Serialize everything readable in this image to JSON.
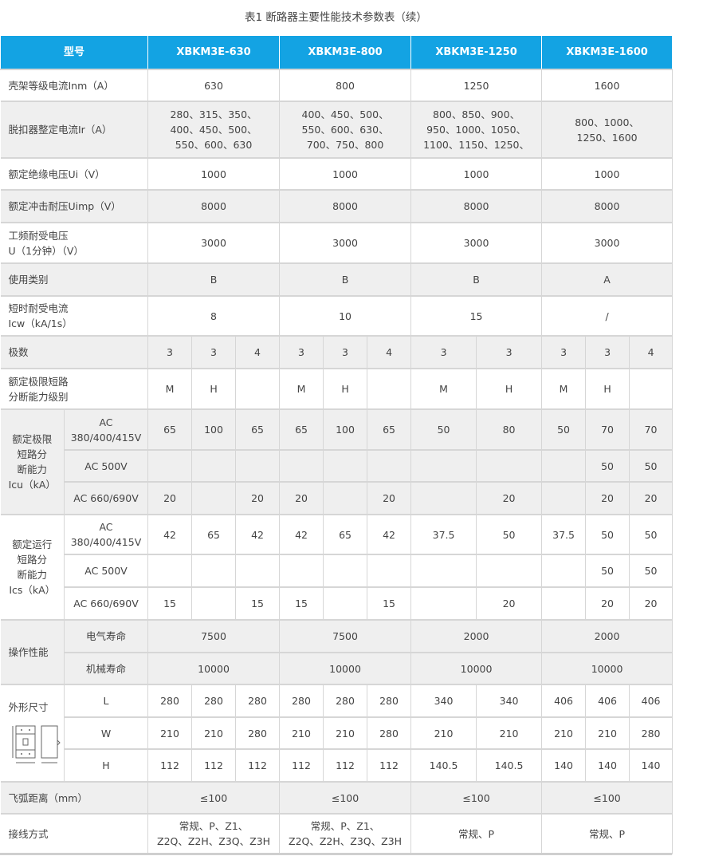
{
  "title": "表1  断路器主要性能技术参数表（续）",
  "colors": {
    "header": "#13a3e3",
    "shaded_row": "#efefef",
    "border": "#d6d6d6"
  },
  "table": {
    "rows": [
      {
        "bg": "hdr",
        "h": 42,
        "cells": [
          {
            "t": "型号",
            "cs": 2,
            "c": "grp"
          },
          {
            "t": "XBKM3E-630",
            "cs": 3
          },
          {
            "t": "XBKM3E-800",
            "cs": 3
          },
          {
            "t": "XBKM3E-1250",
            "cs": 2
          },
          {
            "t": "XBKM3E-1600",
            "cs": 3
          }
        ]
      },
      {
        "bg": "w",
        "h": 40,
        "cells": [
          {
            "t": "壳架等级电流Inm（A）",
            "cs": 2,
            "c": "lab"
          },
          {
            "t": "630",
            "cs": 3
          },
          {
            "t": "800",
            "cs": 3
          },
          {
            "t": "1250",
            "cs": 2
          },
          {
            "t": "1600",
            "cs": 3
          }
        ]
      },
      {
        "bg": "g",
        "h": 71,
        "cells": [
          {
            "t": "脱扣器整定电流Ir（A）",
            "cs": 2,
            "c": "lab"
          },
          {
            "t": "280、315、350、\n400、450、500、\n550、600、630",
            "cs": 3
          },
          {
            "t": "400、450、500、\n550、600、630、\n700、750、800",
            "cs": 3
          },
          {
            "t": "800、850、900、\n950、1000、1050、\n1100、1150、1250、",
            "cs": 2
          },
          {
            "t": "800、1000、\n1250、1600",
            "cs": 3
          }
        ]
      },
      {
        "bg": "w",
        "h": 40,
        "cells": [
          {
            "t": "额定绝缘电压Ui（V）",
            "cs": 2,
            "c": "lab"
          },
          {
            "t": "1000",
            "cs": 3
          },
          {
            "t": "1000",
            "cs": 3
          },
          {
            "t": "1000",
            "cs": 2
          },
          {
            "t": "1000",
            "cs": 3
          }
        ]
      },
      {
        "bg": "g",
        "h": 41,
        "cells": [
          {
            "t": "额定冲击耐压Uimp（V）",
            "cs": 2,
            "c": "lab"
          },
          {
            "t": "8000",
            "cs": 3
          },
          {
            "t": "8000",
            "cs": 3
          },
          {
            "t": "8000",
            "cs": 2
          },
          {
            "t": "8000",
            "cs": 3
          }
        ]
      },
      {
        "bg": "w",
        "h": 51,
        "cells": [
          {
            "t": "工频耐受电压\nU（1分钟）（V）",
            "cs": 2,
            "c": "lab"
          },
          {
            "t": "3000",
            "cs": 3
          },
          {
            "t": "3000",
            "cs": 3
          },
          {
            "t": "3000",
            "cs": 2
          },
          {
            "t": "3000",
            "cs": 3
          }
        ]
      },
      {
        "bg": "g",
        "h": 41,
        "cells": [
          {
            "t": "使用类别",
            "cs": 2,
            "c": "lab"
          },
          {
            "t": "B",
            "cs": 3
          },
          {
            "t": "B",
            "cs": 3
          },
          {
            "t": "B",
            "cs": 2
          },
          {
            "t": "A",
            "cs": 3
          }
        ]
      },
      {
        "bg": "w",
        "h": 50,
        "cells": [
          {
            "t": "短时耐受电流\nIcw（kA/1s）",
            "cs": 2,
            "c": "lab"
          },
          {
            "t": "8",
            "cs": 3
          },
          {
            "t": "10",
            "cs": 3
          },
          {
            "t": "15",
            "cs": 2
          },
          {
            "t": "/",
            "cs": 3
          }
        ]
      },
      {
        "bg": "g",
        "h": 41,
        "cells": [
          {
            "t": "极数",
            "cs": 2,
            "c": "lab"
          },
          {
            "t": "3"
          },
          {
            "t": "3"
          },
          {
            "t": "4"
          },
          {
            "t": "3"
          },
          {
            "t": "3"
          },
          {
            "t": "4"
          },
          {
            "t": "3"
          },
          {
            "t": "3"
          },
          {
            "t": "3"
          },
          {
            "t": "3"
          },
          {
            "t": "4"
          }
        ]
      },
      {
        "bg": "w",
        "h": 51,
        "cells": [
          {
            "t": "额定极限短路\n分断能力级别",
            "cs": 2,
            "c": "lab"
          },
          {
            "t": "M"
          },
          {
            "t": "H"
          },
          {
            "t": ""
          },
          {
            "t": "M"
          },
          {
            "t": "H"
          },
          {
            "t": ""
          },
          {
            "t": "M"
          },
          {
            "t": "H"
          },
          {
            "t": "M"
          },
          {
            "t": "H"
          },
          {
            "t": ""
          }
        ]
      },
      {
        "bg": "g",
        "h": 51,
        "cells": [
          {
            "t": "额定极限\n短路分\n断能力\nIcu（kA）",
            "rs": 3,
            "c": "grp"
          },
          {
            "t": "AC\n380/400/415V"
          },
          {
            "t": "65"
          },
          {
            "t": "100"
          },
          {
            "t": "65"
          },
          {
            "t": "65"
          },
          {
            "t": "100"
          },
          {
            "t": "65"
          },
          {
            "t": "50"
          },
          {
            "t": "80"
          },
          {
            "t": "50"
          },
          {
            "t": "70"
          },
          {
            "t": "70"
          }
        ]
      },
      {
        "bg": "g",
        "h": 40,
        "cells": [
          {
            "t": "AC 500V"
          },
          {
            "t": ""
          },
          {
            "t": ""
          },
          {
            "t": ""
          },
          {
            "t": ""
          },
          {
            "t": ""
          },
          {
            "t": ""
          },
          {
            "t": ""
          },
          {
            "t": ""
          },
          {
            "t": ""
          },
          {
            "t": "50"
          },
          {
            "t": "50"
          }
        ]
      },
      {
        "bg": "g",
        "h": 41,
        "cells": [
          {
            "t": "AC 660/690V"
          },
          {
            "t": "20"
          },
          {
            "t": ""
          },
          {
            "t": "20"
          },
          {
            "t": "20"
          },
          {
            "t": ""
          },
          {
            "t": "20"
          },
          {
            "t": ""
          },
          {
            "t": "20"
          },
          {
            "t": ""
          },
          {
            "t": "20"
          },
          {
            "t": "20"
          }
        ]
      },
      {
        "bg": "w",
        "h": 50,
        "cells": [
          {
            "t": "额定运行\n短路分\n断能力\nIcs（kA）",
            "rs": 3,
            "c": "grp"
          },
          {
            "t": "AC\n380/400/415V"
          },
          {
            "t": "42"
          },
          {
            "t": "65"
          },
          {
            "t": "42"
          },
          {
            "t": "42"
          },
          {
            "t": "65"
          },
          {
            "t": "42"
          },
          {
            "t": "37.5"
          },
          {
            "t": "50"
          },
          {
            "t": "37.5"
          },
          {
            "t": "50"
          },
          {
            "t": "50"
          }
        ]
      },
      {
        "bg": "w",
        "h": 41,
        "cells": [
          {
            "t": "AC 500V"
          },
          {
            "t": ""
          },
          {
            "t": ""
          },
          {
            "t": ""
          },
          {
            "t": ""
          },
          {
            "t": ""
          },
          {
            "t": ""
          },
          {
            "t": ""
          },
          {
            "t": ""
          },
          {
            "t": ""
          },
          {
            "t": "50"
          },
          {
            "t": "50"
          }
        ]
      },
      {
        "bg": "w",
        "h": 41,
        "cells": [
          {
            "t": "AC 660/690V"
          },
          {
            "t": "15"
          },
          {
            "t": ""
          },
          {
            "t": "15"
          },
          {
            "t": "15"
          },
          {
            "t": ""
          },
          {
            "t": "15"
          },
          {
            "t": ""
          },
          {
            "t": "20"
          },
          {
            "t": ""
          },
          {
            "t": "20"
          },
          {
            "t": "20"
          }
        ]
      },
      {
        "bg": "g",
        "h": 41,
        "cells": [
          {
            "t": "操作性能",
            "rs": 2,
            "c": "lab"
          },
          {
            "t": "电气寿命"
          },
          {
            "t": "7500",
            "cs": 3
          },
          {
            "t": "7500",
            "cs": 3
          },
          {
            "t": "2000",
            "cs": 2
          },
          {
            "t": "2000",
            "cs": 3
          }
        ]
      },
      {
        "bg": "g",
        "h": 40,
        "cells": [
          {
            "t": "机械寿命"
          },
          {
            "t": "10000",
            "cs": 3
          },
          {
            "t": "10000",
            "cs": 3
          },
          {
            "t": "10000",
            "cs": 2
          },
          {
            "t": "10000",
            "cs": 3
          }
        ]
      },
      {
        "bg": "w",
        "h": 41,
        "cells": [
          {
            "t": "外形尺寸",
            "rs": 3,
            "c": "lab dim"
          },
          {
            "t": "L"
          },
          {
            "t": "280"
          },
          {
            "t": "280"
          },
          {
            "t": "280"
          },
          {
            "t": "280"
          },
          {
            "t": "280"
          },
          {
            "t": "280"
          },
          {
            "t": "340"
          },
          {
            "t": "340"
          },
          {
            "t": "406"
          },
          {
            "t": "406"
          },
          {
            "t": "406"
          }
        ]
      },
      {
        "bg": "w",
        "h": 40,
        "cells": [
          {
            "t": "W"
          },
          {
            "t": "210"
          },
          {
            "t": "210"
          },
          {
            "t": "280"
          },
          {
            "t": "210"
          },
          {
            "t": "210"
          },
          {
            "t": "280"
          },
          {
            "t": "210"
          },
          {
            "t": "210"
          },
          {
            "t": "210"
          },
          {
            "t": "210"
          },
          {
            "t": "280"
          }
        ]
      },
      {
        "bg": "w",
        "h": 41,
        "cells": [
          {
            "t": "H"
          },
          {
            "t": "112"
          },
          {
            "t": "112"
          },
          {
            "t": "112"
          },
          {
            "t": "112"
          },
          {
            "t": "112"
          },
          {
            "t": "112"
          },
          {
            "t": "140.5"
          },
          {
            "t": "140.5"
          },
          {
            "t": "140"
          },
          {
            "t": "140"
          },
          {
            "t": "140"
          }
        ]
      },
      {
        "bg": "g",
        "h": 40,
        "cells": [
          {
            "t": "飞弧距离（mm）",
            "cs": 2,
            "c": "lab"
          },
          {
            "t": "≤100",
            "cs": 3
          },
          {
            "t": "≤100",
            "cs": 3
          },
          {
            "t": "≤100",
            "cs": 2
          },
          {
            "t": "≤100",
            "cs": 3
          }
        ]
      },
      {
        "bg": "w",
        "h": 50,
        "cells": [
          {
            "t": "接线方式",
            "cs": 2,
            "c": "lab"
          },
          {
            "t": "常规、P、Z1、\nZ2Q、Z2H、Z3Q、Z3H",
            "cs": 3
          },
          {
            "t": "常规、P、Z1、\nZ2Q、Z2H、Z3Q、Z3H",
            "cs": 3
          },
          {
            "t": "常规、P",
            "cs": 2
          },
          {
            "t": "常规、P",
            "cs": 3
          }
        ]
      }
    ]
  }
}
